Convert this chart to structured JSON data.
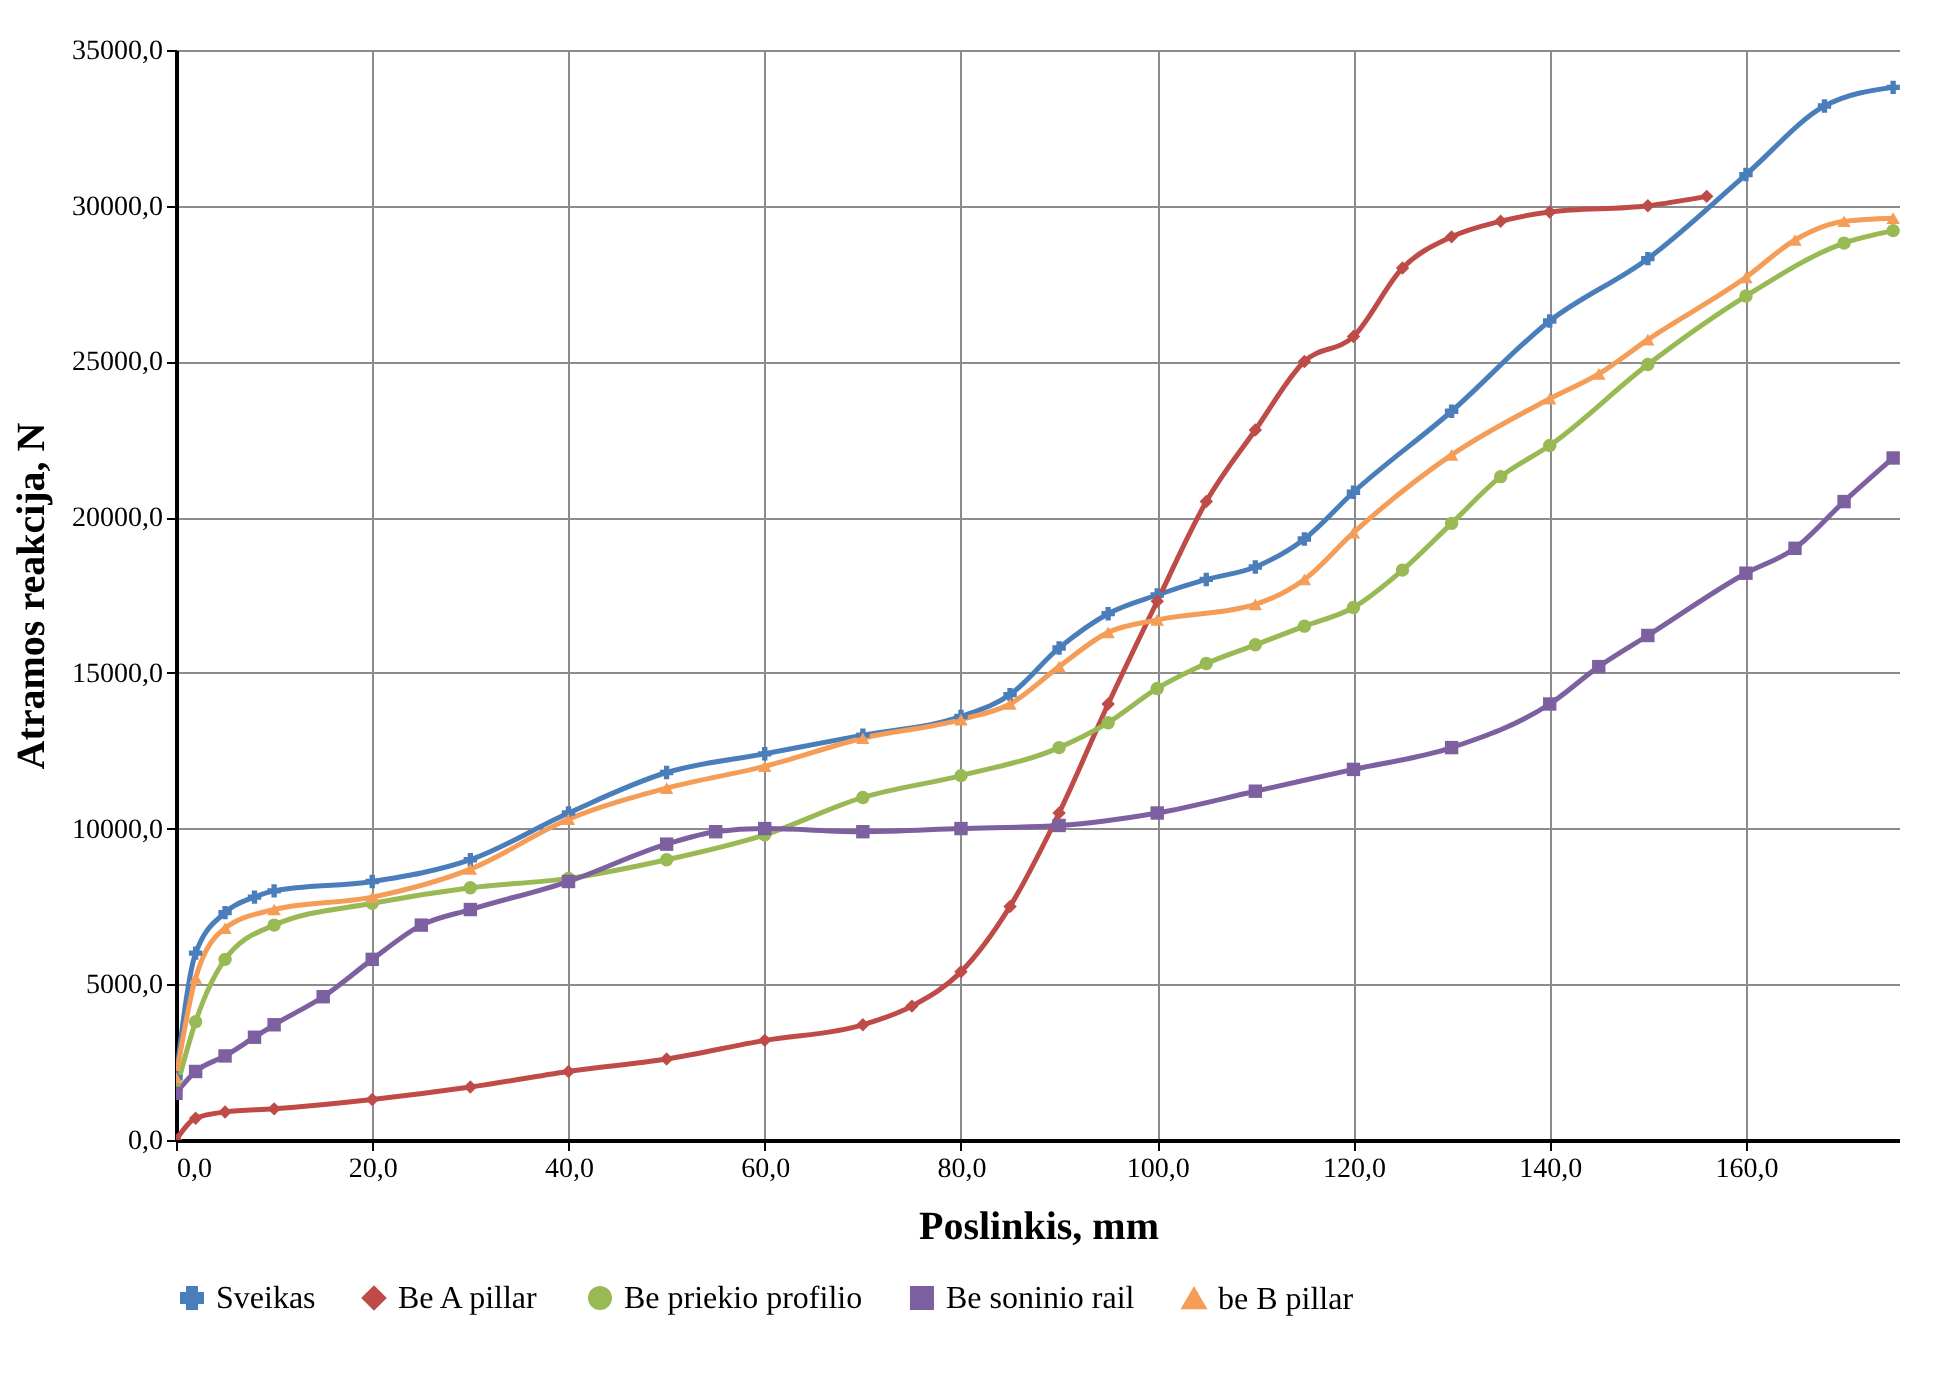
{
  "chart_data": {
    "type": "line",
    "xlabel": "Poslinkis, mm",
    "ylabel": "Atramos reakcija, N",
    "xlim": [
      0,
      175.7
    ],
    "ylim": [
      0,
      35000
    ],
    "xticks": [
      {
        "value": 0,
        "label": "0,0"
      },
      {
        "value": 20,
        "label": "20,0"
      },
      {
        "value": 40,
        "label": "40,0"
      },
      {
        "value": 60,
        "label": "60,0"
      },
      {
        "value": 80,
        "label": "80,0"
      },
      {
        "value": 100,
        "label": "100,0"
      },
      {
        "value": 120,
        "label": "120,0"
      },
      {
        "value": 140,
        "label": "140,0"
      },
      {
        "value": 160,
        "label": "160,0"
      }
    ],
    "yticks": [
      {
        "value": 0,
        "label": "0,0"
      },
      {
        "value": 5000,
        "label": "5000,0"
      },
      {
        "value": 10000,
        "label": "10000,0"
      },
      {
        "value": 15000,
        "label": "15000,0"
      },
      {
        "value": 20000,
        "label": "20000,0"
      },
      {
        "value": 25000,
        "label": "25000,0"
      },
      {
        "value": 30000,
        "label": "30000,0"
      },
      {
        "value": 35000,
        "label": "35000,0"
      }
    ],
    "grid": true,
    "legend": "bottom",
    "line_style": "solid",
    "series": [
      {
        "name": "Sveikas",
        "color": "#4a7ebb",
        "marker": "cross",
        "x": [
          0,
          2,
          5,
          8,
          10,
          20,
          30,
          40,
          50,
          60,
          70,
          80,
          85,
          90,
          95,
          100,
          105,
          110,
          115,
          120,
          130,
          140,
          150,
          160,
          168,
          175
        ],
        "values": [
          2000,
          6000,
          7300,
          7800,
          8000,
          8300,
          9000,
          10500,
          11800,
          12400,
          13000,
          13600,
          14300,
          15800,
          16900,
          17500,
          18000,
          18400,
          19300,
          20800,
          23400,
          26300,
          28300,
          31000,
          33200,
          33800
        ]
      },
      {
        "name": "Be A pillar",
        "color": "#be4b48",
        "marker": "diamond",
        "x": [
          0,
          2,
          5,
          10,
          20,
          30,
          40,
          50,
          60,
          70,
          75,
          80,
          85,
          90,
          95,
          100,
          105,
          110,
          115,
          120,
          125,
          130,
          135,
          140,
          150,
          156
        ],
        "values": [
          0,
          700,
          900,
          1000,
          1300,
          1700,
          2200,
          2600,
          3200,
          3700,
          4300,
          5400,
          7500,
          10500,
          14000,
          17300,
          20500,
          22800,
          25000,
          25800,
          28000,
          29000,
          29500,
          29800,
          30000,
          30300
        ]
      },
      {
        "name": "Be priekio profilio",
        "color": "#98b954",
        "marker": "circle",
        "x": [
          0,
          2,
          5,
          10,
          20,
          30,
          40,
          50,
          60,
          70,
          80,
          90,
          95,
          100,
          105,
          110,
          115,
          120,
          125,
          130,
          135,
          140,
          150,
          160,
          170,
          175
        ],
        "values": [
          1600,
          3800,
          5800,
          6900,
          7600,
          8100,
          8400,
          9000,
          9800,
          11000,
          11700,
          12600,
          13400,
          14500,
          15300,
          15900,
          16500,
          17100,
          18300,
          19800,
          21300,
          22300,
          24900,
          27100,
          28800,
          29200
        ]
      },
      {
        "name": "Be soninio rail",
        "color": "#7d60a0",
        "marker": "square",
        "x": [
          0,
          2,
          5,
          8,
          10,
          15,
          20,
          25,
          30,
          40,
          50,
          55,
          60,
          70,
          80,
          90,
          100,
          110,
          120,
          130,
          140,
          145,
          150,
          160,
          165,
          170,
          175
        ],
        "values": [
          1500,
          2200,
          2700,
          3300,
          3700,
          4600,
          5800,
          6900,
          7400,
          8300,
          9500,
          9900,
          10000,
          9900,
          10000,
          10100,
          10500,
          11200,
          11900,
          12600,
          14000,
          15200,
          16200,
          18200,
          19000,
          20500,
          21900
        ]
      },
      {
        "name": "be  B pillar",
        "color": "#f59d56",
        "marker": "triangle",
        "x": [
          0,
          2,
          5,
          10,
          20,
          30,
          40,
          50,
          60,
          70,
          80,
          85,
          90,
          95,
          100,
          110,
          115,
          120,
          130,
          140,
          145,
          150,
          160,
          165,
          170,
          175
        ],
        "values": [
          2000,
          5200,
          6800,
          7400,
          7800,
          8700,
          10300,
          11300,
          12000,
          12900,
          13500,
          14000,
          15200,
          16300,
          16700,
          17200,
          18000,
          19500,
          22000,
          23800,
          24600,
          25700,
          27700,
          28900,
          29500,
          29600
        ]
      }
    ]
  }
}
